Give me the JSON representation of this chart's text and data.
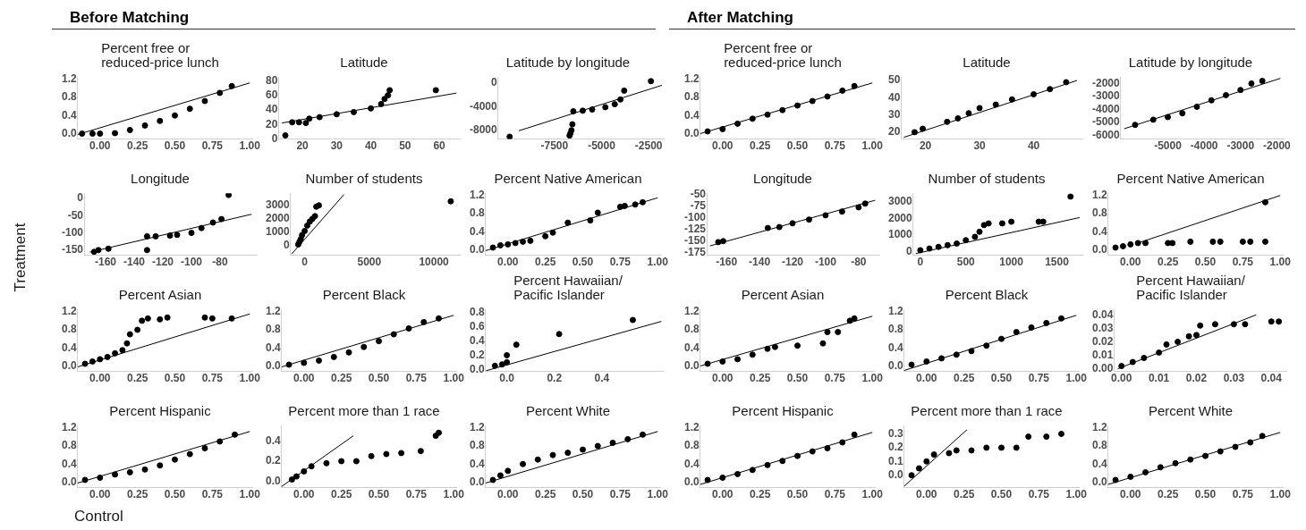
{
  "chart_data": [
    {
      "type": "other",
      "title": "Before Matching",
      "ylabel": "Treatment",
      "xlabel": "Control"
    },
    {
      "type": "scatter",
      "title": "Percent free or\nreduced-price lunch",
      "marker": "circle",
      "xlim": [
        -0.15,
        1.02
      ],
      "ylim": [
        -0.12,
        1.25
      ],
      "xticks": [
        {
          "value": 0,
          "label": "0.00"
        },
        {
          "value": 0.25,
          "label": "0.25"
        },
        {
          "value": 0.5,
          "label": "0.50"
        },
        {
          "value": 0.75,
          "label": "0.75"
        },
        {
          "value": 1,
          "label": "1.00"
        }
      ],
      "yticks": [
        {
          "value": 0,
          "label": "0.0"
        },
        {
          "value": 0.4,
          "label": "0.4"
        },
        {
          "value": 0.8,
          "label": "0.8"
        },
        {
          "value": 1.2,
          "label": "1.2"
        }
      ],
      "series": [
        {
          "type": "scatter",
          "color": "#000000",
          "x": [
            -0.12,
            -0.05,
            0,
            0.1,
            0.2,
            0.3,
            0.4,
            0.5,
            0.6,
            0.7,
            0.8,
            0.88
          ],
          "values": [
            0,
            0,
            0,
            0.01,
            0.08,
            0.18,
            0.28,
            0.4,
            0.55,
            0.72,
            0.9,
            1.05
          ]
        },
        {
          "type": "line",
          "marker": "none",
          "color": "#000000",
          "x": [
            -0.15,
            1.0
          ],
          "values": [
            -0.02,
            1.12
          ]
        }
      ]
    },
    {
      "type": "scatter",
      "title": "Latitude",
      "marker": "circle",
      "xlim": [
        13,
        66
      ],
      "ylim": [
        0,
        85
      ],
      "xticks": [
        20,
        30,
        40,
        50,
        60
      ],
      "yticks": [
        0,
        20,
        40,
        60,
        80
      ],
      "series": [
        {
          "type": "scatter",
          "color": "#000000",
          "x": [
            15,
            17,
            19,
            21,
            22,
            25,
            30,
            35,
            40,
            43,
            44,
            45,
            45.5,
            59
          ],
          "values": [
            5,
            23,
            23,
            22,
            28,
            30,
            34,
            37,
            42,
            48,
            55,
            60,
            67,
            67
          ]
        },
        {
          "type": "line",
          "marker": "none",
          "color": "#000000",
          "x": [
            14,
            65
          ],
          "values": [
            22,
            63
          ]
        }
      ]
    },
    {
      "type": "scatter",
      "title": "Latitude by longitude",
      "marker": "circle",
      "xlim": [
        -10500,
        -1700
      ],
      "ylim": [
        -9500,
        1000
      ],
      "xticks": [
        -7500,
        -5000,
        -2500
      ],
      "yticks": [
        0,
        -4000,
        -8000
      ],
      "series": [
        {
          "type": "scatter",
          "color": "#000000",
          "x": [
            -9880,
            -6700,
            -6650,
            -6600,
            -6550,
            -6500,
            -6000,
            -5500,
            -4800,
            -4300,
            -4000,
            -3800,
            -2380
          ],
          "values": [
            -9100,
            -8900,
            -8500,
            -8000,
            -7000,
            -4800,
            -4700,
            -4500,
            -4100,
            -3600,
            -2800,
            -1300,
            300
          ]
        },
        {
          "type": "line",
          "marker": "none",
          "color": "#000000",
          "x": [
            -9400,
            -1800
          ],
          "values": [
            -8100,
            -400
          ]
        }
      ]
    },
    {
      "type": "scatter",
      "title": "Longitude",
      "marker": "circle",
      "xlim": [
        -175,
        -55
      ],
      "ylim": [
        -165,
        15
      ],
      "xticks": [
        -160,
        -140,
        -120,
        -100,
        -80
      ],
      "yticks": [
        0,
        -50,
        -100,
        -150
      ],
      "series": [
        {
          "type": "scatter",
          "color": "#000000",
          "x": [
            -168,
            -165,
            -158,
            -131,
            -131,
            -125,
            -115,
            -110,
            -100,
            -93,
            -85,
            -79,
            -74
          ],
          "values": [
            -155,
            -150,
            -146,
            -150,
            -110,
            -110,
            -108,
            -106,
            -100,
            -86,
            -70,
            -60,
            10
          ]
        },
        {
          "type": "line",
          "marker": "none",
          "color": "#000000",
          "x": [
            -171,
            -58
          ],
          "values": [
            -156,
            -46
          ]
        }
      ]
    },
    {
      "type": "scatter",
      "title": "Number of students",
      "marker": "circle",
      "xlim": [
        -1100,
        12000
      ],
      "ylim": [
        -700,
        3900
      ],
      "xticks": [
        0,
        5000,
        10000
      ],
      "yticks": [
        0,
        1000,
        2000,
        3000
      ],
      "series": [
        {
          "type": "scatter",
          "color": "#000000",
          "x": [
            -500,
            -400,
            -300,
            -200,
            0,
            200,
            400,
            600,
            800,
            900,
            1100,
            11300
          ],
          "values": [
            100,
            300,
            500,
            800,
            1100,
            1500,
            1800,
            2000,
            2200,
            2900,
            3000,
            3300
          ]
        },
        {
          "type": "line",
          "marker": "none",
          "color": "#000000",
          "x": [
            -1000,
            3040
          ],
          "values": [
            -600,
            3800
          ]
        }
      ]
    },
    {
      "type": "scatter",
      "title": "Percent Native American",
      "marker": "circle",
      "xlim": [
        -0.15,
        1.02
      ],
      "ylim": [
        -0.12,
        1.25
      ],
      "xticks": [
        {
          "value": 0,
          "label": "0.00"
        },
        {
          "value": 0.25,
          "label": "0.25"
        },
        {
          "value": 0.5,
          "label": "0.50"
        },
        {
          "value": 0.75,
          "label": "0.75"
        },
        {
          "value": 1,
          "label": "1.00"
        }
      ],
      "yticks": [
        {
          "value": 0,
          "label": "0.0"
        },
        {
          "value": 0.4,
          "label": "0.4"
        },
        {
          "value": 0.8,
          "label": "0.8"
        },
        {
          "value": 1.2,
          "label": "1.2"
        }
      ],
      "series": [
        {
          "type": "scatter",
          "color": "#000000",
          "x": [
            -0.1,
            -0.05,
            0,
            0.05,
            0.1,
            0.15,
            0.25,
            0.3,
            0.4,
            0.55,
            0.6,
            0.75,
            0.78,
            0.85,
            0.9
          ],
          "values": [
            0.05,
            0.1,
            0.12,
            0.15,
            0.18,
            0.2,
            0.3,
            0.38,
            0.6,
            0.65,
            0.82,
            0.95,
            0.97,
            1.0,
            1.05
          ]
        },
        {
          "type": "line",
          "marker": "none",
          "color": "#000000",
          "x": [
            -0.15,
            1.0
          ],
          "values": [
            -0.02,
            1.15
          ]
        }
      ]
    },
    {
      "type": "scatter",
      "title": "Percent Asian",
      "marker": "circle",
      "xlim": [
        -0.15,
        1.02
      ],
      "ylim": [
        -0.12,
        1.25
      ],
      "xticks": [
        {
          "value": 0,
          "label": "0.00"
        },
        {
          "value": 0.25,
          "label": "0.25"
        },
        {
          "value": 0.5,
          "label": "0.50"
        },
        {
          "value": 0.75,
          "label": "0.75"
        },
        {
          "value": 1,
          "label": "1.00"
        }
      ],
      "yticks": [
        {
          "value": 0,
          "label": "0.0"
        },
        {
          "value": 0.4,
          "label": "0.4"
        },
        {
          "value": 0.8,
          "label": "0.8"
        },
        {
          "value": 1.2,
          "label": "1.2"
        }
      ],
      "series": [
        {
          "type": "scatter",
          "color": "#000000",
          "x": [
            -0.1,
            -0.05,
            0,
            0.05,
            0.1,
            0.15,
            0.18,
            0.2,
            0.25,
            0.28,
            0.32,
            0.4,
            0.45,
            0.7,
            0.75,
            0.88
          ],
          "values": [
            0.05,
            0.1,
            0.15,
            0.2,
            0.28,
            0.35,
            0.5,
            0.7,
            0.8,
            1.0,
            1.05,
            1.03,
            1.07,
            1.07,
            1.05,
            1.05
          ]
        },
        {
          "type": "line",
          "marker": "none",
          "color": "#000000",
          "x": [
            -0.15,
            1.0
          ],
          "values": [
            -0.02,
            1.15
          ]
        }
      ]
    },
    {
      "type": "scatter",
      "title": "Percent Black",
      "marker": "circle",
      "xlim": [
        -0.15,
        1.02
      ],
      "ylim": [
        -0.12,
        1.25
      ],
      "xticks": [
        {
          "value": 0,
          "label": "0.00"
        },
        {
          "value": 0.25,
          "label": "0.25"
        },
        {
          "value": 0.5,
          "label": "0.50"
        },
        {
          "value": 0.75,
          "label": "0.75"
        },
        {
          "value": 1,
          "label": "1.00"
        }
      ],
      "yticks": [
        {
          "value": 0,
          "label": "0.0"
        },
        {
          "value": 0.4,
          "label": "0.4"
        },
        {
          "value": 0.8,
          "label": "0.8"
        },
        {
          "value": 1.2,
          "label": "1.2"
        }
      ],
      "series": [
        {
          "type": "scatter",
          "color": "#000000",
          "x": [
            -0.1,
            0,
            0.1,
            0.2,
            0.3,
            0.4,
            0.5,
            0.6,
            0.7,
            0.8,
            0.9
          ],
          "values": [
            0.03,
            0.07,
            0.12,
            0.2,
            0.3,
            0.42,
            0.55,
            0.7,
            0.83,
            0.97,
            1.05
          ]
        },
        {
          "type": "line",
          "marker": "none",
          "color": "#000000",
          "x": [
            -0.15,
            1.0
          ],
          "values": [
            -0.02,
            1.12
          ]
        }
      ]
    },
    {
      "type": "scatter",
      "title": "Percent Hawaiian/\nPacific Islander",
      "marker": "circle",
      "xlim": [
        -0.09,
        0.66
      ],
      "ylim": [
        -0.03,
        0.85
      ],
      "xticks": [
        {
          "value": 0,
          "label": "0.0"
        },
        {
          "value": 0.2,
          "label": "0.2"
        },
        {
          "value": 0.4,
          "label": "0.4"
        }
      ],
      "yticks": [
        {
          "value": 0,
          "label": "0.0"
        },
        {
          "value": 0.2,
          "label": "0.2"
        },
        {
          "value": 0.4,
          "label": "0.4"
        },
        {
          "value": 0.6,
          "label": "0.6"
        },
        {
          "value": 0.8,
          "label": "0.8"
        }
      ],
      "series": [
        {
          "type": "scatter",
          "color": "#000000",
          "x": [
            -0.05,
            -0.02,
            0,
            0.0,
            0.04,
            0.22,
            0.53
          ],
          "values": [
            0.05,
            0.07,
            0.1,
            0.2,
            0.35,
            0.5,
            0.7
          ]
        },
        {
          "type": "line",
          "marker": "none",
          "color": "#000000",
          "x": [
            -0.087,
            0.65
          ],
          "values": [
            -0.02,
            0.68
          ]
        }
      ]
    },
    {
      "type": "scatter",
      "title": "Percent Hispanic",
      "marker": "circle",
      "xlim": [
        -0.15,
        1.02
      ],
      "ylim": [
        -0.12,
        1.25
      ],
      "xticks": [
        {
          "value": 0,
          "label": "0.00"
        },
        {
          "value": 0.25,
          "label": "0.25"
        },
        {
          "value": 0.5,
          "label": "0.50"
        },
        {
          "value": 0.75,
          "label": "0.75"
        },
        {
          "value": 1,
          "label": "1.00"
        }
      ],
      "yticks": [
        {
          "value": 0,
          "label": "0.0"
        },
        {
          "value": 0.4,
          "label": "0.4"
        },
        {
          "value": 0.8,
          "label": "0.8"
        },
        {
          "value": 1.2,
          "label": "1.2"
        }
      ],
      "series": [
        {
          "type": "scatter",
          "color": "#000000",
          "x": [
            -0.1,
            0,
            0.1,
            0.2,
            0.3,
            0.4,
            0.5,
            0.6,
            0.7,
            0.8,
            0.9
          ],
          "values": [
            0.05,
            0.1,
            0.17,
            0.22,
            0.28,
            0.37,
            0.5,
            0.62,
            0.75,
            0.9,
            1.05
          ]
        },
        {
          "type": "line",
          "marker": "none",
          "color": "#000000",
          "x": [
            -0.15,
            1.0
          ],
          "values": [
            -0.02,
            1.12
          ]
        }
      ]
    },
    {
      "type": "scatter",
      "title": "Percent more than 1 race",
      "marker": "circle",
      "xlim": [
        -0.15,
        1.02
      ],
      "ylim": [
        -0.06,
        0.55
      ],
      "xticks": [
        {
          "value": 0,
          "label": "0.00"
        },
        {
          "value": 0.25,
          "label": "0.25"
        },
        {
          "value": 0.5,
          "label": "0.50"
        },
        {
          "value": 0.75,
          "label": "0.75"
        },
        {
          "value": 1,
          "label": "1.00"
        }
      ],
      "yticks": [
        {
          "value": 0,
          "label": "0.0"
        },
        {
          "value": 0.2,
          "label": "0.2"
        },
        {
          "value": 0.4,
          "label": "0.4"
        }
      ],
      "series": [
        {
          "type": "scatter",
          "color": "#000000",
          "x": [
            -0.08,
            -0.05,
            0,
            0.05,
            0.15,
            0.25,
            0.35,
            0.45,
            0.55,
            0.65,
            0.78,
            0.88,
            0.9
          ],
          "values": [
            0.02,
            0.05,
            0.1,
            0.15,
            0.18,
            0.2,
            0.2,
            0.25,
            0.27,
            0.28,
            0.3,
            0.45,
            0.48
          ]
        },
        {
          "type": "line",
          "marker": "none",
          "color": "#000000",
          "x": [
            -0.15,
            0.33
          ],
          "values": [
            -0.05,
            0.45
          ]
        }
      ]
    },
    {
      "type": "scatter",
      "title": "Percent White",
      "marker": "circle",
      "xlim": [
        -0.15,
        1.02
      ],
      "ylim": [
        -0.12,
        1.25
      ],
      "xticks": [
        {
          "value": 0,
          "label": "0.00"
        },
        {
          "value": 0.25,
          "label": "0.25"
        },
        {
          "value": 0.5,
          "label": "0.50"
        },
        {
          "value": 0.75,
          "label": "0.75"
        },
        {
          "value": 1,
          "label": "1.00"
        }
      ],
      "yticks": [
        {
          "value": 0,
          "label": "0.0"
        },
        {
          "value": 0.4,
          "label": "0.4"
        },
        {
          "value": 0.8,
          "label": "0.8"
        },
        {
          "value": 1.2,
          "label": "1.2"
        }
      ],
      "series": [
        {
          "type": "scatter",
          "color": "#000000",
          "x": [
            -0.1,
            -0.05,
            0,
            0.1,
            0.2,
            0.3,
            0.4,
            0.5,
            0.6,
            0.7,
            0.8,
            0.9
          ],
          "values": [
            0.05,
            0.15,
            0.25,
            0.4,
            0.5,
            0.6,
            0.65,
            0.72,
            0.8,
            0.87,
            0.95,
            1.05
          ]
        },
        {
          "type": "line",
          "marker": "none",
          "color": "#000000",
          "x": [
            -0.15,
            1.0
          ],
          "values": [
            -0.02,
            1.12
          ]
        }
      ]
    },
    {
      "type": "other",
      "title": "After Matching"
    },
    {
      "type": "scatter",
      "title": "Percent free or\nreduced-price lunch",
      "marker": "circle",
      "xlim": [
        -0.15,
        1.02
      ],
      "ylim": [
        -0.12,
        1.25
      ],
      "xticks": [
        {
          "value": 0,
          "label": "0.00"
        },
        {
          "value": 0.25,
          "label": "0.25"
        },
        {
          "value": 0.5,
          "label": "0.50"
        },
        {
          "value": 0.75,
          "label": "0.75"
        },
        {
          "value": 1,
          "label": "1.00"
        }
      ],
      "yticks": [
        {
          "value": 0,
          "label": "0.0"
        },
        {
          "value": 0.4,
          "label": "0.4"
        },
        {
          "value": 0.8,
          "label": "0.8"
        },
        {
          "value": 1.2,
          "label": "1.2"
        }
      ],
      "series": [
        {
          "type": "scatter",
          "color": "#000000",
          "x": [
            -0.1,
            0,
            0.1,
            0.2,
            0.3,
            0.4,
            0.5,
            0.6,
            0.7,
            0.8,
            0.88
          ],
          "values": [
            0.05,
            0.1,
            0.22,
            0.33,
            0.42,
            0.52,
            0.62,
            0.72,
            0.82,
            0.95,
            1.05
          ]
        },
        {
          "type": "line",
          "marker": "none",
          "color": "#000000",
          "x": [
            -0.15,
            1.0
          ],
          "values": [
            0,
            1.12
          ]
        }
      ]
    },
    {
      "type": "scatter",
      "title": "Latitude",
      "marker": "circle",
      "xlim": [
        15.5,
        49
      ],
      "ylim": [
        16,
        52
      ],
      "xticks": [
        20,
        30,
        40
      ],
      "yticks": [
        20,
        30,
        40,
        50
      ],
      "series": [
        {
          "type": "scatter",
          "color": "#000000",
          "x": [
            18,
            19.5,
            24,
            26,
            28,
            30,
            33,
            36,
            40,
            43,
            46
          ],
          "values": [
            20,
            22,
            26,
            28,
            31,
            34,
            36,
            39,
            42,
            45,
            49
          ]
        },
        {
          "type": "line",
          "marker": "none",
          "color": "#000000",
          "x": [
            16,
            48
          ],
          "values": [
            17,
            50
          ]
        }
      ]
    },
    {
      "type": "scatter",
      "title": "Latitude by longitude",
      "marker": "circle",
      "xlim": [
        -6300,
        -1800
      ],
      "ylim": [
        -6300,
        -1500
      ],
      "xticks": [
        -5000,
        -4000,
        -3000,
        -2000
      ],
      "yticks": [
        -2000,
        -3000,
        -4000,
        -5000,
        -6000
      ],
      "series": [
        {
          "type": "scatter",
          "color": "#000000",
          "x": [
            -5900,
            -5400,
            -5000,
            -4600,
            -4200,
            -3800,
            -3400,
            -3000,
            -2700,
            -2400
          ],
          "values": [
            -5200,
            -4800,
            -4600,
            -4300,
            -3800,
            -3300,
            -2900,
            -2500,
            -2000,
            -1800
          ]
        },
        {
          "type": "line",
          "marker": "none",
          "color": "#000000",
          "x": [
            -6200,
            -1900
          ],
          "values": [
            -5500,
            -1600
          ]
        }
      ]
    },
    {
      "type": "scatter",
      "title": "Longitude",
      "marker": "circle",
      "xlim": [
        -172,
        -68
      ],
      "ylim": [
        -180,
        -48
      ],
      "xticks": [
        -160,
        -140,
        -120,
        -100,
        -80
      ],
      "yticks": [
        -50,
        -75,
        -100,
        -125,
        -150,
        -175
      ],
      "series": [
        {
          "type": "scatter",
          "color": "#000000",
          "x": [
            -165,
            -162,
            -135,
            -128,
            -120,
            -110,
            -100,
            -90,
            -80,
            -76
          ],
          "values": [
            -152,
            -150,
            -122,
            -120,
            -112,
            -104,
            -95,
            -87,
            -78,
            -70
          ]
        },
        {
          "type": "line",
          "marker": "none",
          "color": "#000000",
          "x": [
            -170,
            -70
          ],
          "values": [
            -160,
            -63
          ]
        }
      ]
    },
    {
      "type": "scatter",
      "title": "Number of students",
      "marker": "circle",
      "xlim": [
        -80,
        1780
      ],
      "ylim": [
        -200,
        3500
      ],
      "xticks": [
        0,
        500,
        1000,
        1500
      ],
      "yticks": [
        0,
        1000,
        2000,
        3000
      ],
      "series": [
        {
          "type": "scatter",
          "color": "#000000",
          "x": [
            0,
            100,
            200,
            300,
            400,
            500,
            600,
            650,
            700,
            750,
            900,
            1000,
            1300,
            1350,
            1650
          ],
          "values": [
            100,
            200,
            300,
            400,
            500,
            700,
            900,
            1200,
            1600,
            1700,
            1700,
            1800,
            1800,
            1800,
            3300
          ]
        },
        {
          "type": "line",
          "marker": "none",
          "color": "#000000",
          "x": [
            -50,
            1750
          ],
          "values": [
            -100,
            2050
          ]
        }
      ]
    },
    {
      "type": "scatter",
      "title": "Percent Native American",
      "marker": "circle",
      "xlim": [
        -0.15,
        1.02
      ],
      "ylim": [
        -0.12,
        1.25
      ],
      "xticks": [
        {
          "value": 0,
          "label": "0.00"
        },
        {
          "value": 0.25,
          "label": "0.25"
        },
        {
          "value": 0.5,
          "label": "0.50"
        },
        {
          "value": 0.75,
          "label": "0.75"
        },
        {
          "value": 1,
          "label": "1.00"
        }
      ],
      "yticks": [
        {
          "value": 0,
          "label": "0.0"
        },
        {
          "value": 0.4,
          "label": "0.4"
        },
        {
          "value": 0.8,
          "label": "0.8"
        },
        {
          "value": 1.2,
          "label": "1.2"
        }
      ],
      "series": [
        {
          "type": "scatter",
          "color": "#000000",
          "x": [
            -0.1,
            -0.05,
            0,
            0.05,
            0.1,
            0.25,
            0.28,
            0.4,
            0.55,
            0.6,
            0.75,
            0.8,
            0.9,
            0.9
          ],
          "values": [
            0.05,
            0.08,
            0.12,
            0.15,
            0.15,
            0.15,
            0.15,
            0.18,
            0.18,
            0.18,
            0.18,
            0.18,
            0.18,
            1.05
          ]
        },
        {
          "type": "line",
          "marker": "none",
          "color": "#000000",
          "x": [
            0.05,
            1.0
          ],
          "values": [
            0.15,
            1.2
          ]
        }
      ]
    },
    {
      "type": "scatter",
      "title": "Percent Asian",
      "marker": "circle",
      "xlim": [
        -0.15,
        1.02
      ],
      "ylim": [
        -0.12,
        1.25
      ],
      "xticks": [
        {
          "value": 0,
          "label": "0.00"
        },
        {
          "value": 0.25,
          "label": "0.25"
        },
        {
          "value": 0.5,
          "label": "0.50"
        },
        {
          "value": 0.75,
          "label": "0.75"
        },
        {
          "value": 1,
          "label": "1.00"
        }
      ],
      "yticks": [
        {
          "value": 0,
          "label": "0.0"
        },
        {
          "value": 0.4,
          "label": "0.4"
        },
        {
          "value": 0.8,
          "label": "0.8"
        },
        {
          "value": 1.2,
          "label": "1.2"
        }
      ],
      "series": [
        {
          "type": "scatter",
          "color": "#000000",
          "x": [
            -0.1,
            0,
            0.1,
            0.2,
            0.3,
            0.35,
            0.5,
            0.67,
            0.7,
            0.77,
            0.85,
            0.88
          ],
          "values": [
            0.05,
            0.1,
            0.15,
            0.25,
            0.38,
            0.42,
            0.45,
            0.5,
            0.75,
            0.75,
            1.0,
            1.05
          ]
        },
        {
          "type": "line",
          "marker": "none",
          "color": "#000000",
          "x": [
            -0.15,
            1.0
          ],
          "values": [
            0,
            1.1
          ]
        }
      ]
    },
    {
      "type": "scatter",
      "title": "Percent Black",
      "marker": "circle",
      "xlim": [
        -0.15,
        1.02
      ],
      "ylim": [
        -0.12,
        1.25
      ],
      "xticks": [
        {
          "value": 0,
          "label": "0.00"
        },
        {
          "value": 0.25,
          "label": "0.25"
        },
        {
          "value": 0.5,
          "label": "0.50"
        },
        {
          "value": 0.75,
          "label": "0.75"
        },
        {
          "value": 1,
          "label": "1.00"
        }
      ],
      "yticks": [
        {
          "value": 0,
          "label": "0.0"
        },
        {
          "value": 0.4,
          "label": "0.4"
        },
        {
          "value": 0.8,
          "label": "0.8"
        },
        {
          "value": 1.2,
          "label": "1.2"
        }
      ],
      "series": [
        {
          "type": "scatter",
          "color": "#000000",
          "x": [
            -0.1,
            0,
            0.1,
            0.2,
            0.3,
            0.4,
            0.5,
            0.6,
            0.7,
            0.8,
            0.9
          ],
          "values": [
            0.03,
            0.1,
            0.17,
            0.25,
            0.33,
            0.45,
            0.6,
            0.75,
            0.85,
            0.95,
            1.05
          ]
        },
        {
          "type": "line",
          "marker": "none",
          "color": "#000000",
          "x": [
            -0.15,
            1.0
          ],
          "values": [
            -0.1,
            1.12
          ]
        }
      ]
    },
    {
      "type": "scatter",
      "title": "Percent Hawaiian/\nPacific Islander",
      "marker": "circle",
      "xlim": [
        -0.002,
        0.044
      ],
      "ylim": [
        -0.002,
        0.044
      ],
      "xticks": [
        {
          "value": 0,
          "label": "0.00"
        },
        {
          "value": 0.01,
          "label": "0.01"
        },
        {
          "value": 0.02,
          "label": "0.02"
        },
        {
          "value": 0.03,
          "label": "0.03"
        },
        {
          "value": 0.04,
          "label": "0.04"
        }
      ],
      "yticks": [
        {
          "value": 0,
          "label": "0.00"
        },
        {
          "value": 0.01,
          "label": "0.01"
        },
        {
          "value": 0.02,
          "label": "0.02"
        },
        {
          "value": 0.03,
          "label": "0.03"
        },
        {
          "value": 0.04,
          "label": "0.04"
        }
      ],
      "series": [
        {
          "type": "scatter",
          "color": "#000000",
          "x": [
            0,
            0.003,
            0.006,
            0.01,
            0.012,
            0.015,
            0.018,
            0.02,
            0.021,
            0.025,
            0.03,
            0.033,
            0.04,
            0.042
          ],
          "values": [
            0.002,
            0.005,
            0.008,
            0.012,
            0.018,
            0.02,
            0.024,
            0.025,
            0.032,
            0.033,
            0.033,
            0.033,
            0.035,
            0.035
          ]
        },
        {
          "type": "line",
          "marker": "none",
          "color": "#000000",
          "x": [
            -0.001,
            0.036
          ],
          "values": [
            0,
            0.04
          ]
        }
      ]
    },
    {
      "type": "scatter",
      "title": "Percent Hispanic",
      "marker": "circle",
      "xlim": [
        -0.15,
        1.02
      ],
      "ylim": [
        -0.12,
        1.25
      ],
      "xticks": [
        {
          "value": 0,
          "label": "0.00"
        },
        {
          "value": 0.25,
          "label": "0.25"
        },
        {
          "value": 0.5,
          "label": "0.50"
        },
        {
          "value": 0.75,
          "label": "0.75"
        },
        {
          "value": 1,
          "label": "1.00"
        }
      ],
      "yticks": [
        {
          "value": 0,
          "label": "0.0"
        },
        {
          "value": 0.4,
          "label": "0.4"
        },
        {
          "value": 0.8,
          "label": "0.8"
        },
        {
          "value": 1.2,
          "label": "1.2"
        }
      ],
      "series": [
        {
          "type": "scatter",
          "color": "#000000",
          "x": [
            -0.1,
            0,
            0.1,
            0.2,
            0.3,
            0.4,
            0.5,
            0.6,
            0.7,
            0.8,
            0.88
          ],
          "values": [
            0.05,
            0.1,
            0.18,
            0.27,
            0.38,
            0.47,
            0.58,
            0.68,
            0.75,
            0.88,
            1.05
          ]
        },
        {
          "type": "line",
          "marker": "none",
          "color": "#000000",
          "x": [
            -0.15,
            1.0
          ],
          "values": [
            -0.05,
            1.1
          ]
        }
      ]
    },
    {
      "type": "scatter",
      "title": "Percent more than 1 race",
      "marker": "circle",
      "xlim": [
        -0.15,
        1.02
      ],
      "ylim": [
        -0.09,
        0.36
      ],
      "xticks": [
        {
          "value": 0,
          "label": "0.00"
        },
        {
          "value": 0.25,
          "label": "0.25"
        },
        {
          "value": 0.5,
          "label": "0.50"
        },
        {
          "value": 0.75,
          "label": "0.75"
        },
        {
          "value": 1,
          "label": "1.00"
        }
      ],
      "yticks": [
        {
          "value": 0,
          "label": "0.0"
        },
        {
          "value": 0.1,
          "label": "0.1"
        },
        {
          "value": 0.2,
          "label": "0.2"
        },
        {
          "value": 0.3,
          "label": "0.3"
        }
      ],
      "series": [
        {
          "type": "scatter",
          "color": "#000000",
          "x": [
            -0.1,
            -0.05,
            0,
            0.05,
            0.15,
            0.2,
            0.3,
            0.4,
            0.5,
            0.6,
            0.68,
            0.8,
            0.9
          ],
          "values": [
            0.0,
            0.05,
            0.1,
            0.15,
            0.16,
            0.18,
            0.18,
            0.2,
            0.2,
            0.2,
            0.28,
            0.28,
            0.3
          ]
        },
        {
          "type": "line",
          "marker": "none",
          "color": "#000000",
          "x": [
            -0.15,
            0.27
          ],
          "values": [
            -0.08,
            0.33
          ]
        }
      ]
    },
    {
      "type": "scatter",
      "title": "Percent White",
      "marker": "circle",
      "xlim": [
        -0.15,
        1.02
      ],
      "ylim": [
        -0.12,
        1.25
      ],
      "xticks": [
        {
          "value": 0,
          "label": "0.00"
        },
        {
          "value": 0.25,
          "label": "0.25"
        },
        {
          "value": 0.5,
          "label": "0.50"
        },
        {
          "value": 0.75,
          "label": "0.75"
        },
        {
          "value": 1,
          "label": "1.00"
        }
      ],
      "yticks": [
        {
          "value": 0,
          "label": "0.0"
        },
        {
          "value": 0.4,
          "label": "0.4"
        },
        {
          "value": 0.8,
          "label": "0.8"
        },
        {
          "value": 1.2,
          "label": "1.2"
        }
      ],
      "series": [
        {
          "type": "scatter",
          "color": "#000000",
          "x": [
            -0.1,
            0,
            0.1,
            0.2,
            0.3,
            0.4,
            0.5,
            0.6,
            0.7,
            0.8,
            0.88
          ],
          "values": [
            0.05,
            0.12,
            0.22,
            0.33,
            0.42,
            0.5,
            0.58,
            0.68,
            0.78,
            0.88,
            1.02
          ]
        },
        {
          "type": "line",
          "marker": "none",
          "color": "#000000",
          "x": [
            -0.15,
            1.0
          ],
          "values": [
            -0.05,
            1.1
          ]
        }
      ]
    }
  ]
}
